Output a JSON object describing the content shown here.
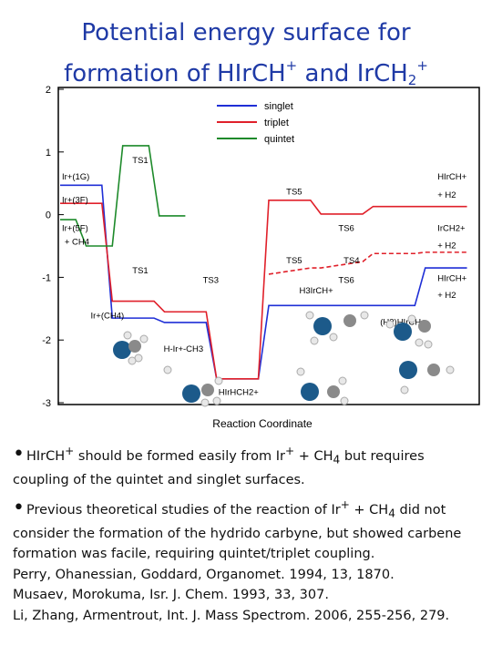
{
  "title": {
    "line1": "Potential energy surface for",
    "line2_a": "formation of HIr",
    "line2_b": "CH",
    "line2_c": "+",
    "line2_d": " and Ir",
    "line2_e": "CH",
    "line2_f": "2",
    "line2_g": "+"
  },
  "chart_data": {
    "type": "line",
    "xlabel": "Reaction Coordinate",
    "ylabel": "",
    "ylim": [
      -3,
      2
    ],
    "yticks": [
      2,
      1,
      0,
      -1,
      -2,
      -3
    ],
    "legend": {
      "placement": "top-right",
      "entries": [
        "singlet",
        "triplet",
        "quintet"
      ]
    },
    "colors": {
      "singlet": "#1f2fd6",
      "triplet": "#e0202a",
      "quintet": "#1d8a2a"
    },
    "series": [
      {
        "name": "singlet",
        "segments": [
          [
            [
              0.0,
              0.47
            ],
            [
              0.8,
              0.47
            ]
          ],
          [
            [
              1.0,
              -1.65
            ],
            [
              1.8,
              -1.65
            ]
          ],
          [
            [
              2.0,
              -1.72
            ],
            [
              2.8,
              -1.72
            ]
          ],
          [
            [
              3.0,
              -2.62
            ],
            [
              3.8,
              -2.62
            ]
          ],
          [
            [
              4.0,
              -1.45
            ],
            [
              4.8,
              -1.45
            ]
          ],
          [
            [
              5.0,
              -1.45
            ],
            [
              5.8,
              -1.45
            ]
          ],
          [
            [
              6.0,
              -1.45
            ],
            [
              6.8,
              -1.45
            ]
          ],
          [
            [
              7.0,
              -0.85
            ],
            [
              7.8,
              -0.85
            ]
          ]
        ]
      },
      {
        "name": "triplet",
        "segments": [
          [
            [
              0.0,
              0.18
            ],
            [
              0.8,
              0.18
            ]
          ],
          [
            [
              1.0,
              -1.38
            ],
            [
              1.8,
              -1.38
            ]
          ],
          [
            [
              2.0,
              -1.55
            ],
            [
              2.8,
              -1.55
            ]
          ],
          [
            [
              3.0,
              -2.62
            ],
            [
              3.8,
              -2.62
            ]
          ],
          [
            [
              4.0,
              0.23
            ],
            [
              4.8,
              0.23
            ]
          ],
          [
            [
              5.0,
              0.01
            ],
            [
              5.8,
              0.01
            ]
          ],
          [
            [
              6.0,
              0.13
            ],
            [
              6.8,
              0.13
            ]
          ],
          [
            [
              7.0,
              0.13
            ],
            [
              7.8,
              0.13
            ]
          ]
        ],
        "dashed": [
          [
            [
              4.0,
              -0.95
            ],
            [
              4.8,
              -0.85
            ]
          ],
          [
            [
              5.0,
              -0.85
            ],
            [
              5.8,
              -0.75
            ]
          ],
          [
            [
              6.0,
              -0.62
            ],
            [
              6.8,
              -0.62
            ]
          ],
          [
            [
              7.0,
              -0.6
            ],
            [
              7.8,
              -0.6
            ]
          ]
        ]
      },
      {
        "name": "quintet",
        "segments": [
          [
            [
              0.0,
              -0.08
            ],
            [
              0.3,
              -0.08
            ]
          ],
          [
            [
              0.5,
              -0.5
            ],
            [
              1.0,
              -0.5
            ]
          ],
          [
            [
              1.2,
              1.1
            ],
            [
              1.7,
              1.1
            ]
          ],
          [
            [
              1.9,
              -0.02
            ],
            [
              2.4,
              -0.02
            ]
          ]
        ]
      }
    ],
    "annotations": [
      {
        "text": "TS1",
        "x": 1.35,
        "y": 0.88
      },
      {
        "text": "TS1",
        "x": 1.35,
        "y": -0.88
      },
      {
        "text": "TS3",
        "x": 2.7,
        "y": -1.03
      },
      {
        "text": "TS5",
        "x": 4.3,
        "y": 0.38
      },
      {
        "text": "TS5",
        "x": 4.3,
        "y": -0.72
      },
      {
        "text": "TS6",
        "x": 5.3,
        "y": -0.2
      },
      {
        "text": "TS4",
        "x": 5.4,
        "y": -0.72
      },
      {
        "text": "TS6",
        "x": 5.3,
        "y": -1.03
      },
      {
        "text": "Ir+(1G)",
        "x": 0.0,
        "y": 0.62
      },
      {
        "text": "Ir+(3F)",
        "x": 0.0,
        "y": 0.25
      },
      {
        "text": "Ir+(5F)",
        "x": 0.0,
        "y": -0.2
      },
      {
        "text": "+ CH4",
        "x": 0.05,
        "y": -0.42
      },
      {
        "text": "Ir+(CH4)",
        "x": 0.55,
        "y": -1.6
      },
      {
        "text": "H-Ir+-CH3",
        "x": 1.95,
        "y": -2.13
      },
      {
        "text": "HIrHCH2+",
        "x": 3.0,
        "y": -2.82
      },
      {
        "text": "H3IrCH+",
        "x": 4.55,
        "y": -1.2
      },
      {
        "text": "(H2)HIrCH+",
        "x": 6.1,
        "y": -1.7
      },
      {
        "text": "HIrCH+",
        "x": 7.2,
        "y": 0.62
      },
      {
        "text": "+ H2",
        "x": 7.2,
        "y": 0.33
      },
      {
        "text": "IrCH2+",
        "x": 7.2,
        "y": -0.2
      },
      {
        "text": "+ H2",
        "x": 7.2,
        "y": -0.48
      },
      {
        "text": "HIrCH+",
        "x": 7.2,
        "y": -1.0
      },
      {
        "text": "+ H2",
        "x": 7.2,
        "y": -1.27
      }
    ],
    "legend_labels": {
      "singlet": "singlet",
      "triplet": "triplet",
      "quintet": "quintet"
    },
    "structures": [
      "Ir+(CH4)",
      "H-Ir+-CH3",
      "HIrHCH2+",
      "H3IrCH+",
      "(H2)HIrCH+",
      "HIrCH+"
    ]
  },
  "bullets": {
    "b1_a": "HIrCH",
    "b1_b": "+",
    "b1_c": " should be formed easily from Ir",
    "b1_d": "+",
    "b1_e": " + CH",
    "b1_f": "4",
    "b1_g": " but requires coupling of the quintet and singlet surfaces.",
    "b2_a": "Previous theoretical studies of the reaction of Ir",
    "b2_b": "+",
    "b2_c": " + CH",
    "b2_d": "4",
    "b2_e": " did not consider the formation of the hydrido carbyne, but showed carbene formation was facile, requiring quintet/triplet coupling.",
    "ref1": "Perry, Ohanessian, Goddard, Organomet. 1994, 13, 1870.",
    "ref2": "Musaev, Morokuma, Isr. J. Chem. 1993, 33, 307.",
    "ref3": "Li, Zhang, Armentrout, Int. J. Mass Spectrom. 2006, 255-256, 279."
  }
}
